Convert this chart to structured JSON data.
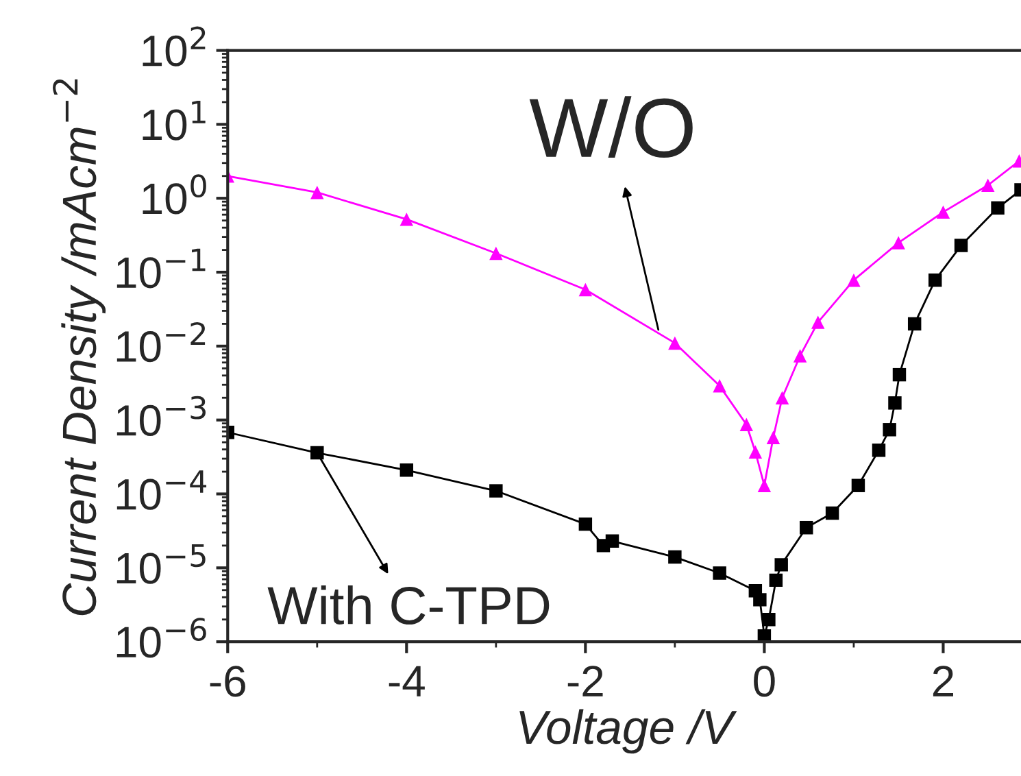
{
  "chart_data": {
    "type": "line",
    "xlabel": "Voltage /V",
    "ylabel": "Current Density /mAcm$^{−2}$",
    "log": "y",
    "xlim": [
      -6,
      2.87
    ],
    "xticks": [
      -6,
      -4,
      -2,
      0,
      2
    ],
    "ylim": [
      1e-06,
      100
    ],
    "yticks": [
      {
        "value": 100,
        "label": "10$^{2}$"
      },
      {
        "value": 10,
        "label": "10$^{1}$"
      },
      {
        "value": 1,
        "label": "10$^{0}$"
      },
      {
        "value": 0.1,
        "label": "10$^{−1}$"
      },
      {
        "value": 0.01,
        "label": "10$^{−2}$"
      },
      {
        "value": 0.001,
        "label": "10$^{−3}$"
      },
      {
        "value": 0.0001,
        "label": "10$^{−4}$"
      },
      {
        "value": 1e-05,
        "label": "10$^{−5}$"
      },
      {
        "value": 1e-06,
        "label": "10$^{−6}$"
      }
    ],
    "grid": false,
    "legend": false,
    "series": [
      {
        "color": "#ff00ff",
        "marker": "triangle",
        "x": [
          -6,
          -5,
          -4,
          -3,
          -2,
          -1,
          -0.5,
          -0.2,
          -0.1,
          0,
          0.1,
          0.2,
          0.4,
          0.6,
          1,
          1.5,
          2,
          2.5,
          2.85
        ],
        "values": [
          2.0,
          1.2,
          0.52,
          0.18,
          0.058,
          0.011,
          0.0029,
          0.00087,
          0.00037,
          0.00013,
          0.00058,
          0.002,
          0.0074,
          0.021,
          0.078,
          0.25,
          0.65,
          1.5,
          3.2
        ]
      },
      {
        "color": "#000000",
        "marker": "square",
        "x": [
          -6,
          -5,
          -4,
          -3,
          -2,
          -1.8,
          -1.7,
          -1,
          -0.5,
          -0.1,
          -0.05,
          0,
          0.05,
          0.13,
          0.19,
          0.47,
          0.76,
          1.05,
          1.28,
          1.4,
          1.46,
          1.51,
          1.68,
          1.91,
          2.2,
          2.61,
          2.87
        ],
        "values": [
          0.00068,
          0.00036,
          0.00021,
          0.00011,
          3.9e-05,
          2e-05,
          2.3e-05,
          1.4e-05,
          8.5e-06,
          4.9e-06,
          3.7e-06,
          1.2e-06,
          2e-06,
          6.8e-06,
          1.1e-05,
          3.5e-05,
          5.5e-05,
          0.00013,
          0.00039,
          0.00074,
          0.0017,
          0.0041,
          0.02,
          0.078,
          0.23,
          0.74,
          1.3
        ]
      }
    ],
    "annotations": [
      {
        "text": "W/O",
        "x": -1.17,
        "y": 0.014
      },
      {
        "text": "With C-TPD",
        "x": -5,
        "y": 0.00036
      }
    ]
  }
}
